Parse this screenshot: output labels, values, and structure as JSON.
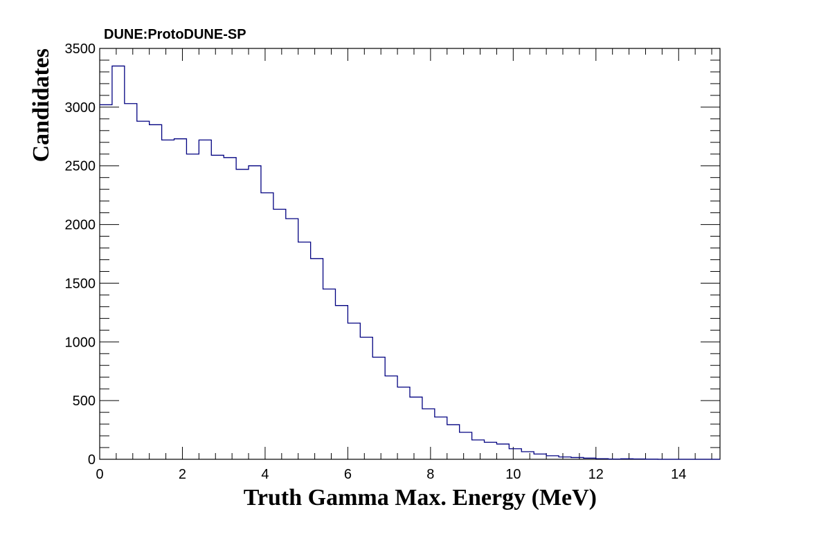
{
  "chart_data": {
    "type": "histogram",
    "title": "DUNE:ProtoDUNE-SP",
    "xlabel": "Truth Gamma Max. Energy (MeV)",
    "ylabel": "Candidates",
    "xlim": [
      0,
      15
    ],
    "ylim": [
      0,
      3500
    ],
    "x_ticks": [
      0,
      2,
      4,
      6,
      8,
      10,
      12,
      14
    ],
    "y_ticks": [
      0,
      500,
      1000,
      1500,
      2000,
      2500,
      3000,
      3500
    ],
    "bin_width": 0.3,
    "values": [
      3020,
      3350,
      3030,
      2880,
      2850,
      2720,
      2730,
      2600,
      2720,
      2590,
      2570,
      2470,
      2500,
      2270,
      2130,
      2050,
      1850,
      1710,
      1450,
      1310,
      1160,
      1040,
      870,
      710,
      615,
      530,
      430,
      360,
      295,
      230,
      165,
      145,
      130,
      90,
      65,
      45,
      30,
      20,
      15,
      10,
      5,
      2,
      4,
      3,
      1,
      0,
      0,
      0,
      0,
      0
    ],
    "line_color": "#000080",
    "grid": false
  }
}
